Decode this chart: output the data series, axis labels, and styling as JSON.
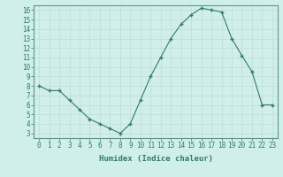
{
  "x": [
    0,
    1,
    2,
    3,
    4,
    5,
    6,
    7,
    8,
    9,
    10,
    11,
    12,
    13,
    14,
    15,
    16,
    17,
    18,
    19,
    20,
    21,
    22,
    23
  ],
  "y": [
    8.0,
    7.5,
    7.5,
    6.5,
    5.5,
    4.5,
    4.0,
    3.5,
    3.0,
    4.0,
    6.5,
    9.0,
    11.0,
    13.0,
    14.5,
    15.5,
    16.2,
    16.0,
    15.8,
    13.0,
    11.2,
    9.5,
    6.0,
    6.0
  ],
  "xlabel": "Humidex (Indice chaleur)",
  "xlim_min": -0.5,
  "xlim_max": 23.5,
  "ylim_min": 2.5,
  "ylim_max": 16.5,
  "yticks": [
    3,
    4,
    5,
    6,
    7,
    8,
    9,
    10,
    11,
    12,
    13,
    14,
    15,
    16
  ],
  "xticks": [
    0,
    1,
    2,
    3,
    4,
    5,
    6,
    7,
    8,
    9,
    10,
    11,
    12,
    13,
    14,
    15,
    16,
    17,
    18,
    19,
    20,
    21,
    22,
    23
  ],
  "line_color": "#2d7d6e",
  "marker": "+",
  "marker_size": 3.5,
  "bg_color": "#d0eeea",
  "grid_color_major": "#c0d8d4",
  "grid_color_minor": "#d8edea",
  "axis_bg": "#d0eeea",
  "xlabel_color": "#2d7d6e",
  "tick_color": "#2d7d6e",
  "spine_color": "#5a9a8e",
  "tick_fontsize": 5.5,
  "xlabel_fontsize": 6.5
}
